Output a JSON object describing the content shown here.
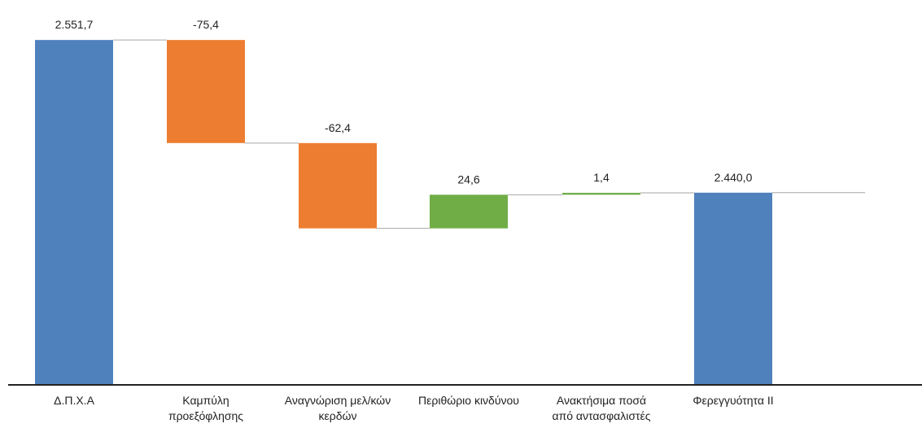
{
  "chart_data": {
    "type": "bar",
    "subtype": "waterfall",
    "categories": [
      [
        "Δ.Π.Χ.Α"
      ],
      [
        "Καμπύλη",
        "προεξόφλησης"
      ],
      [
        "Αναγνώριση μελ/κών",
        "κερδών"
      ],
      [
        "Περιθώριο κινδύνου"
      ],
      [
        "Ανακτήσιμα ποσά",
        "από αντασφαλιστές"
      ],
      [
        "Φερεγγυότητα ΙΙ"
      ]
    ],
    "steps": [
      {
        "kind": "total",
        "value": 2551.7,
        "label": "2.551,7"
      },
      {
        "kind": "delta",
        "value": -75.4,
        "label": "-75,4"
      },
      {
        "kind": "delta",
        "value": -62.4,
        "label": "-62,4"
      },
      {
        "kind": "delta",
        "value": 24.6,
        "label": "24,6"
      },
      {
        "kind": "delta",
        "value": 1.4,
        "label": "1,4"
      },
      {
        "kind": "total",
        "value": 2440.0,
        "label": "2.440,0"
      }
    ],
    "ylim": [
      2300,
      2555
    ],
    "grid": false,
    "legend": "none",
    "colors": {
      "total": "#4F81BD",
      "decrease": "#ED7D31",
      "increase": "#70AD47",
      "connector": "#A6A6A6",
      "axis": "#222222"
    }
  }
}
